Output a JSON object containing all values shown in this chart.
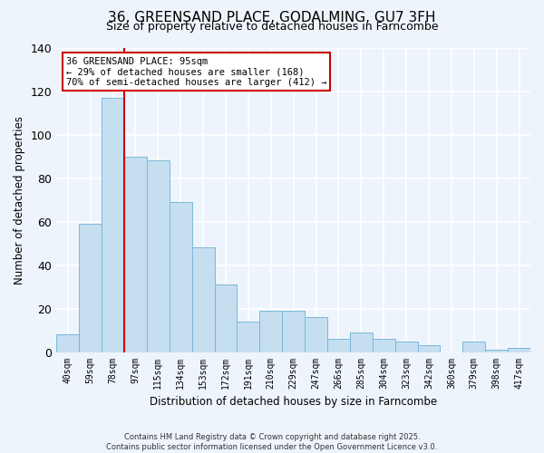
{
  "title": "36, GREENSAND PLACE, GODALMING, GU7 3FH",
  "subtitle": "Size of property relative to detached houses in Farncombe",
  "xlabel": "Distribution of detached houses by size in Farncombe",
  "ylabel": "Number of detached properties",
  "categories": [
    "40sqm",
    "59sqm",
    "78sqm",
    "97sqm",
    "115sqm",
    "134sqm",
    "153sqm",
    "172sqm",
    "191sqm",
    "210sqm",
    "229sqm",
    "247sqm",
    "266sqm",
    "285sqm",
    "304sqm",
    "323sqm",
    "342sqm",
    "360sqm",
    "379sqm",
    "398sqm",
    "417sqm"
  ],
  "values": [
    8,
    59,
    117,
    90,
    88,
    69,
    48,
    31,
    14,
    19,
    19,
    16,
    6,
    9,
    6,
    5,
    3,
    0,
    5,
    1,
    2
  ],
  "bar_color": "#c5dff0",
  "bar_edge_color": "#7ab8d9",
  "vline_x": 2.5,
  "vline_color": "#cc0000",
  "ylim": [
    0,
    140
  ],
  "yticks": [
    0,
    20,
    40,
    60,
    80,
    100,
    120,
    140
  ],
  "annotation_title": "36 GREENSAND PLACE: 95sqm",
  "annotation_line1": "← 29% of detached houses are smaller (168)",
  "annotation_line2": "70% of semi-detached houses are larger (412) →",
  "annotation_box_facecolor": "#ffffff",
  "annotation_box_edgecolor": "#cc0000",
  "footer_line1": "Contains HM Land Registry data © Crown copyright and database right 2025.",
  "footer_line2": "Contains public sector information licensed under the Open Government Licence v3.0.",
  "background_color": "#eef4fb",
  "grid_color": "#ffffff",
  "title_fontsize": 11,
  "subtitle_fontsize": 9
}
